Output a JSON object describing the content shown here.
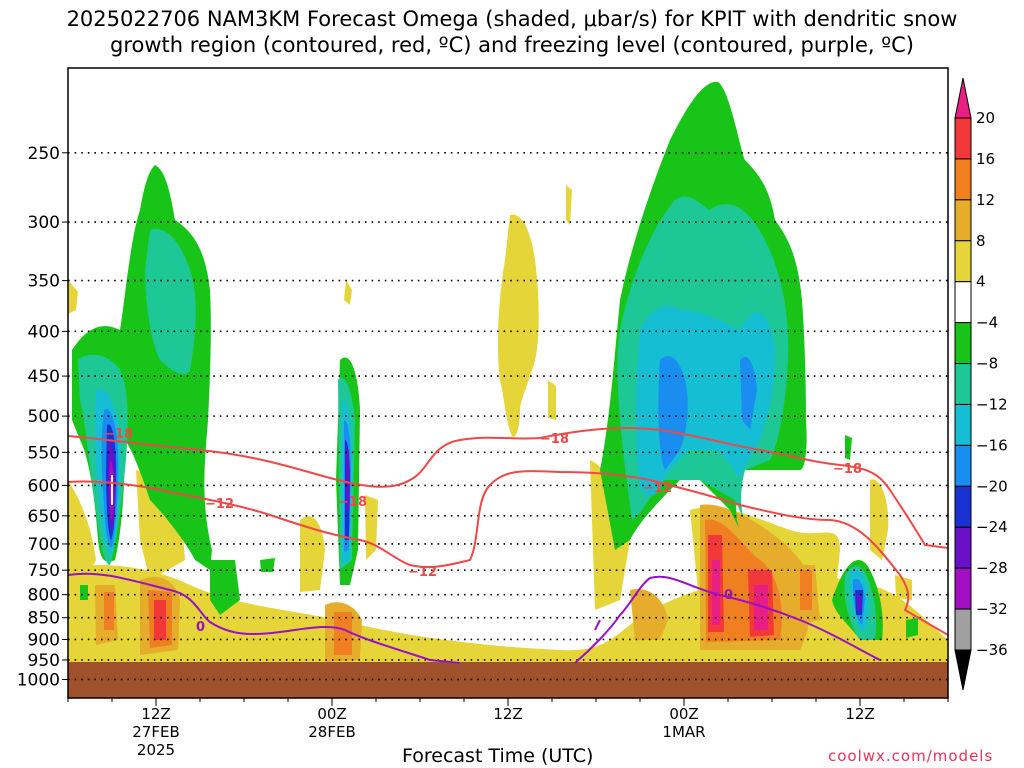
{
  "title": {
    "line1": "2025022706 NAM3KM Forecast Omega (shaded, μbar/s) for KPIT with dendritic snow",
    "line2": "growth region (contoured, red, ºC) and freezing level (contoured, purple, ºC)"
  },
  "credit": "coolwx.com/models",
  "chart_data": {
    "type": "heatmap",
    "xlabel": "Forecast Time (UTC)",
    "ylabel": "",
    "x_range": [
      "2025-02-27T06Z",
      "2025-03-01T18Z"
    ],
    "x_ticks": [
      {
        "label": "12Z",
        "sub": "27FEB",
        "sub2": "2025"
      },
      {
        "label": "00Z",
        "sub": "28FEB",
        "sub2": ""
      },
      {
        "label": "12Z",
        "sub": "",
        "sub2": ""
      },
      {
        "label": "00Z",
        "sub": "1MAR",
        "sub2": ""
      },
      {
        "label": "12Z",
        "sub": "",
        "sub2": ""
      }
    ],
    "y_ticks": [
      "250",
      "300",
      "350",
      "400",
      "450",
      "500",
      "550",
      "600",
      "650",
      "700",
      "750",
      "800",
      "850",
      "900",
      "950",
      "1000"
    ],
    "y_scale": "log-pressure (hPa, inverted)",
    "grid": true,
    "colorbar": {
      "labels": [
        "20",
        "16",
        "12",
        "8",
        "4",
        "−4",
        "−8",
        "−12",
        "−16",
        "−20",
        "−24",
        "−28",
        "−32",
        "−36"
      ],
      "colors": [
        "#e81e82",
        "#f23838",
        "#f07f22",
        "#e6ac2c",
        "#e6d538",
        "#ffffff",
        "#18c418",
        "#1ec896",
        "#16bed4",
        "#1a8ef0",
        "#1a32d2",
        "#6a10c8",
        "#a40ec4",
        "#a0a0a0",
        "#000000"
      ]
    },
    "contours": [
      {
        "name": "-18",
        "color": "#f04848"
      },
      {
        "name": "-12",
        "color": "#f04848"
      },
      {
        "name": "0",
        "color": "#9a10c8"
      }
    ],
    "ground_color": "#a0522d"
  }
}
